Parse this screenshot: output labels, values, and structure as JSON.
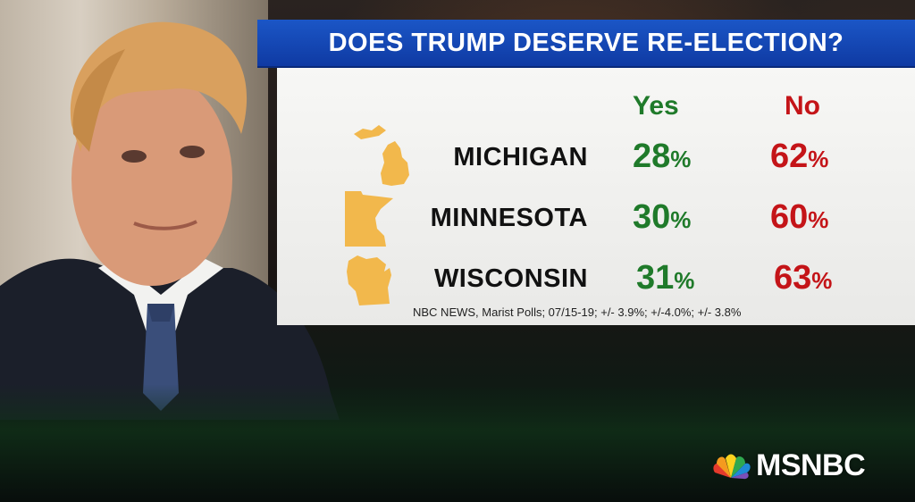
{
  "title": "DOES TRUMP DESERVE RE-ELECTION?",
  "columns": {
    "yes": "Yes",
    "no": "No"
  },
  "rows": [
    {
      "state": "MICHIGAN",
      "icon": "michigan-icon",
      "yes": "28",
      "no": "62",
      "pct": "%"
    },
    {
      "state": "MINNESOTA",
      "icon": "minnesota-icon",
      "yes": "30",
      "no": "60",
      "pct": "%"
    },
    {
      "state": "WISCONSIN",
      "icon": "wisconsin-icon",
      "yes": "31",
      "no": "63",
      "pct": "%"
    }
  ],
  "source": "NBC NEWS, Marist Polls; 07/15-19; +/- 3.9%; +/-4.0%; +/- 3.8%",
  "network": "MSNBC",
  "colors": {
    "title_bar": "#1b56c6",
    "yes": "#1f7a2a",
    "no": "#c41418",
    "state_fill": "#f2b84c"
  }
}
